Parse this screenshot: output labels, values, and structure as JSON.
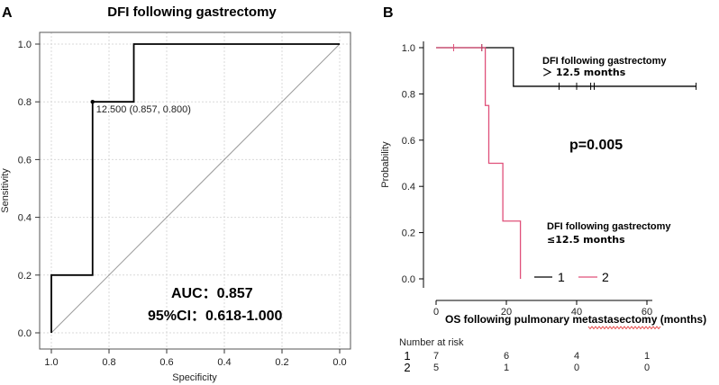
{
  "panel_labels": {
    "a": "A",
    "b": "B"
  },
  "colors": {
    "roc": "#000000",
    "diagonal": "#9a9a9a",
    "grid": "#d9d9d9",
    "group1": "#000000",
    "group2": "#e0507a",
    "squiggle": "#e64040"
  },
  "chart_data": [
    {
      "type": "line",
      "panel": "A",
      "title": "DFI following gastrectomy",
      "xlabel": "Specificity",
      "ylabel": "Sensitivity",
      "x_reversed": true,
      "xlim": [
        1.0,
        0.0
      ],
      "ylim": [
        0.0,
        1.0
      ],
      "x_ticks": [
        1.0,
        0.8,
        0.6,
        0.4,
        0.2,
        0.0
      ],
      "x_tick_labels": [
        "1.0",
        "0.8",
        "0.6",
        "0.4",
        "0.2",
        "0.0"
      ],
      "y_ticks": [
        0.0,
        0.2,
        0.4,
        0.6,
        0.8,
        1.0
      ],
      "y_tick_labels": [
        "0.0",
        "0.2",
        "0.4",
        "0.6",
        "0.8",
        "1.0"
      ],
      "grid": true,
      "series": [
        {
          "name": "ROC",
          "x": [
            1.0,
            1.0,
            0.857,
            0.857,
            0.714,
            0.714,
            0.0
          ],
          "y": [
            0.0,
            0.2,
            0.2,
            0.8,
            0.8,
            1.0,
            1.0
          ]
        }
      ],
      "reference_line": {
        "x": [
          1.0,
          0.0
        ],
        "y": [
          0.0,
          1.0
        ]
      },
      "cutoff_point": {
        "x": 0.857,
        "y": 0.8,
        "label": "12.500 (0.857, 0.800)"
      },
      "annotations": {
        "auc": "AUC：0.857",
        "ci": "95%CI：0.618-1.000"
      }
    },
    {
      "type": "line",
      "panel": "B",
      "xlabel": "OS following pulmonary metastasectomy (months)",
      "xlabel_parts": [
        "OS following pulmonary ",
        "metastasectomy",
        " (months)"
      ],
      "ylabel": "Probability",
      "xlim": [
        0,
        75
      ],
      "ylim": [
        0.0,
        1.0
      ],
      "x_ticks": [
        0,
        20,
        40,
        60
      ],
      "x_tick_labels": [
        "0",
        "20",
        "40",
        "60"
      ],
      "y_ticks": [
        0.0,
        0.2,
        0.4,
        0.6,
        0.8,
        1.0
      ],
      "y_tick_labels": [
        "0.0",
        "0.2",
        "0.4",
        "0.6",
        "0.8",
        "1.0"
      ],
      "grid": false,
      "series": [
        {
          "name": "1",
          "label": "DFI following gastrectomy > 12.5 months",
          "label_lines": [
            "DFI following gastrectomy",
            "＞ 12.5 months"
          ],
          "x": [
            0,
            22,
            22,
            74
          ],
          "y": [
            1.0,
            1.0,
            0.833,
            0.833
          ],
          "censor_x": [
            5,
            13,
            35,
            40,
            44,
            45,
            74
          ]
        },
        {
          "name": "2",
          "label": "DFI following gastrectomy ≤12.5 months",
          "label_lines": [
            "DFI following gastrectomy",
            "≤12.5 months"
          ],
          "x": [
            0,
            14,
            14,
            15,
            15,
            19,
            19,
            24,
            24
          ],
          "y": [
            1.0,
            1.0,
            0.75,
            0.75,
            0.5,
            0.5,
            0.25,
            0.25,
            0.0
          ],
          "censor_x": [
            5,
            13
          ]
        }
      ],
      "legend": {
        "position": "bottom-right",
        "entries": [
          "1",
          "2"
        ]
      },
      "annotations": {
        "p_value": "p=0.005"
      },
      "risk_table": {
        "title": "Number at risk",
        "times": [
          0,
          20,
          40,
          60
        ],
        "rows": [
          {
            "group": "1",
            "counts": [
              "7",
              "6",
              "4",
              "1"
            ]
          },
          {
            "group": "2",
            "counts": [
              "5",
              "1",
              "0",
              "0"
            ]
          }
        ]
      }
    }
  ]
}
